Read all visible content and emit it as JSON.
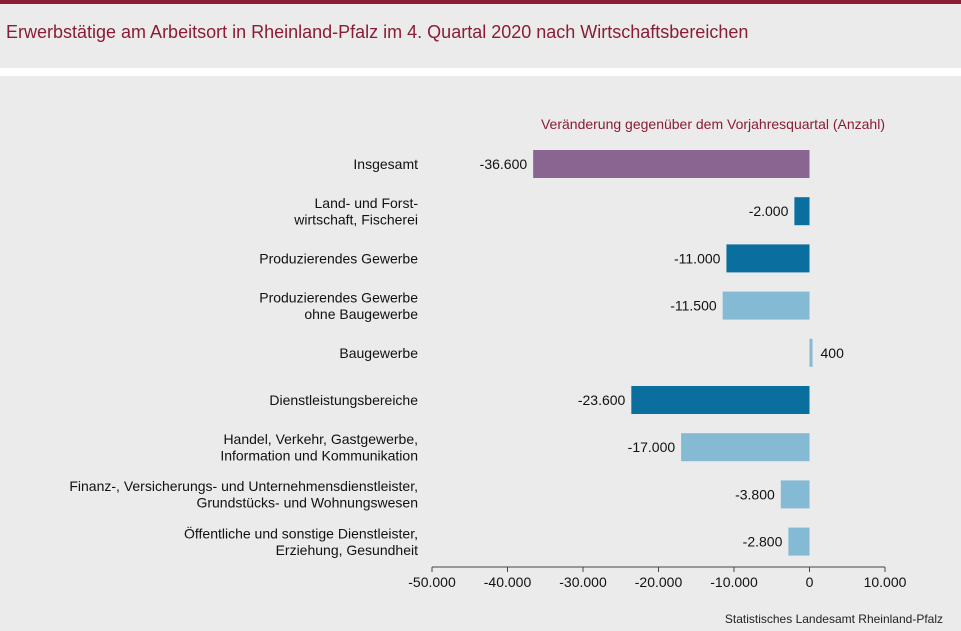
{
  "title": "Erwerbstätige am Arbeitsort in Rheinland-Pfalz im 4. Quartal 2020 nach Wirtschaftsbereichen",
  "footer": "Statistisches Landesamt Rheinland-Pfalz",
  "colors": {
    "accent": "#8a1c35",
    "total": "#8a6591",
    "dark": "#0a6e9e",
    "light": "#84bad3"
  },
  "chart_data": {
    "type": "bar",
    "orientation": "horizontal",
    "subtitle": "Veränderung gegenüber dem Vorjahresquartal (Anzahl)",
    "categories": [
      [
        "Insgesamt"
      ],
      [
        "Land- und Forst-",
        "wirtschaft, Fischerei"
      ],
      [
        "Produzierendes Gewerbe"
      ],
      [
        "Produzierendes Gewerbe",
        "ohne Baugewerbe"
      ],
      [
        "Baugewerbe"
      ],
      [
        "Dienstleistungsbereiche"
      ],
      [
        "Handel, Verkehr, Gastgewerbe,",
        "Information und Kommunikation"
      ],
      [
        "Finanz-, Versicherungs- und Unternehmensdienstleister,",
        "Grundstücks- und Wohnungswesen"
      ],
      [
        "Öffentliche und sonstige Dienstleister,",
        "Erziehung, Gesundheit"
      ]
    ],
    "values": [
      -36600,
      -2000,
      -11000,
      -11500,
      400,
      -23600,
      -17000,
      -3800,
      -2800
    ],
    "value_labels": [
      "-36.600",
      "-2.000",
      "-11.000",
      "-11.500",
      "400",
      "-23.600",
      "-17.000",
      "-3.800",
      "-2.800"
    ],
    "bar_colors": [
      "total",
      "dark",
      "dark",
      "light",
      "light",
      "dark",
      "light",
      "light",
      "light"
    ],
    "xlim": [
      -50000,
      10000
    ],
    "xticks": [
      -50000,
      -40000,
      -30000,
      -20000,
      -10000,
      0,
      10000
    ],
    "xtick_labels": [
      "-50.000",
      "-40.000",
      "-30.000",
      "-20.000",
      "-10.000",
      "0",
      "10.000"
    ],
    "grid": false,
    "legend": "none"
  }
}
